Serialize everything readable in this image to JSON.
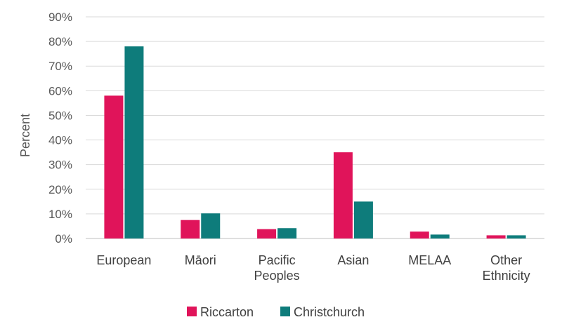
{
  "chart_data": {
    "type": "bar",
    "categories": [
      [
        "European"
      ],
      [
        "Māori"
      ],
      [
        "Pacific",
        "Peoples"
      ],
      [
        "Asian"
      ],
      [
        "MELAA"
      ],
      [
        "Other",
        "Ethnicity"
      ]
    ],
    "series": [
      {
        "name": "Riccarton",
        "color": "#E0145A",
        "values": [
          58,
          7.5,
          3.8,
          35,
          2.8,
          1.3
        ]
      },
      {
        "name": "Christchurch",
        "color": "#0E7C7B",
        "values": [
          78,
          10.2,
          4.2,
          15,
          1.6,
          1.3
        ]
      }
    ],
    "ylabel": "Percent",
    "ylim": [
      0,
      90
    ],
    "yticks": [
      0,
      10,
      20,
      30,
      40,
      50,
      60,
      70,
      80,
      90
    ],
    "ytick_format": "{v}%",
    "grid": true,
    "legend": "bottom"
  }
}
